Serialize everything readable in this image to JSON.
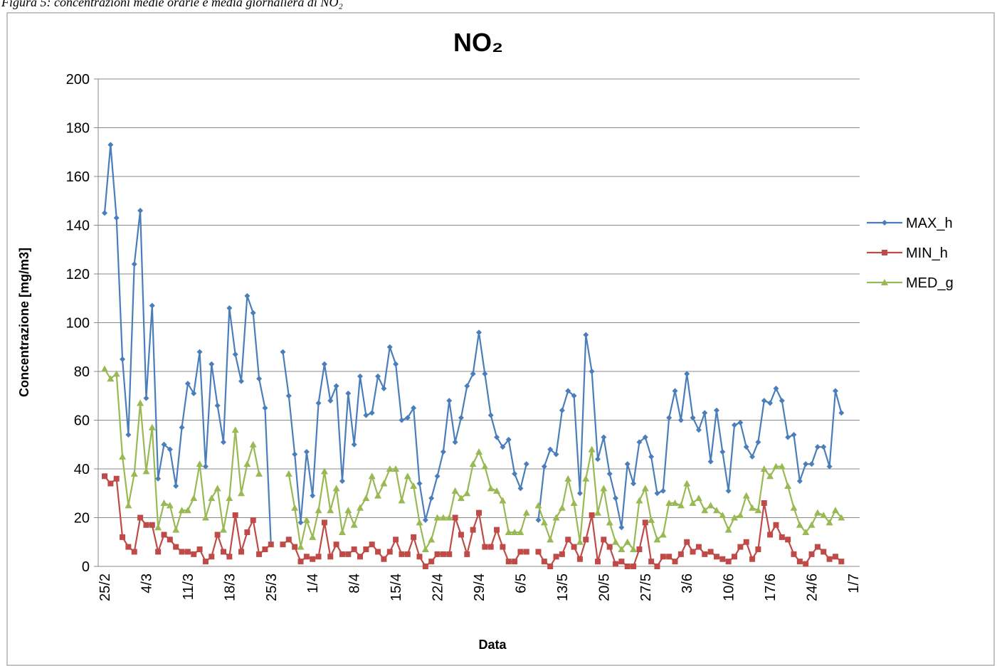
{
  "chart_data": {
    "type": "line",
    "caption": "Figura 5: concentrazioni medie orarie e media giornaliera di NO₂",
    "title": "NO₂",
    "x_label": "Data",
    "y_label": "Concentrazione [mg/m3]",
    "categories": [
      "25/2",
      null,
      null,
      null,
      null,
      null,
      null,
      "4/3",
      null,
      null,
      null,
      null,
      null,
      null,
      "11/3",
      null,
      null,
      null,
      null,
      null,
      null,
      "18/3",
      null,
      null,
      null,
      null,
      null,
      null,
      "25/3",
      null,
      null,
      null,
      null,
      null,
      null,
      "1/4",
      null,
      null,
      null,
      null,
      null,
      null,
      "8/4",
      null,
      null,
      null,
      null,
      null,
      null,
      "15/4",
      null,
      null,
      null,
      null,
      null,
      null,
      "22/4",
      null,
      null,
      null,
      null,
      null,
      null,
      "29/4",
      null,
      null,
      null,
      null,
      null,
      null,
      "6/5",
      null,
      null,
      null,
      null,
      null,
      null,
      "13/5",
      null,
      null,
      null,
      null,
      null,
      null,
      "20/5",
      null,
      null,
      null,
      null,
      null,
      null,
      "27/5",
      null,
      null,
      null,
      null,
      null,
      null,
      "3/6",
      null,
      null,
      null,
      null,
      null,
      null,
      "10/6",
      null,
      null,
      null,
      null,
      null,
      null,
      "17/6",
      null,
      null,
      null,
      null,
      null,
      null,
      "24/6",
      null,
      null,
      null,
      null,
      null,
      null,
      "1/7"
    ],
    "series": [
      {
        "name": "MAX_h",
        "color": "#4a7ebb",
        "marker": "diamond",
        "values": [
          145,
          173,
          143,
          85,
          54,
          124,
          146,
          69,
          107,
          36,
          50,
          48,
          33,
          57,
          75,
          71,
          88,
          41,
          83,
          66,
          51,
          106,
          87,
          76,
          111,
          104,
          77,
          65,
          9,
          null,
          88,
          70,
          46,
          18,
          47,
          29,
          67,
          83,
          68,
          74,
          35,
          71,
          50,
          78,
          62,
          63,
          78,
          73,
          90,
          83,
          60,
          61,
          65,
          34,
          19,
          28,
          37,
          47,
          68,
          51,
          61,
          74,
          79,
          96,
          79,
          62,
          53,
          49,
          52,
          38,
          32,
          42,
          null,
          19,
          41,
          48,
          46,
          64,
          72,
          70,
          30,
          95,
          80,
          44,
          53,
          38,
          28,
          16,
          42,
          34,
          51,
          53,
          45,
          30,
          31,
          61,
          72,
          60,
          79,
          61,
          56,
          63,
          43,
          64,
          47,
          31,
          58,
          59,
          49,
          45,
          51,
          68,
          67,
          73,
          68,
          53,
          54,
          35,
          42,
          42,
          49,
          49,
          41,
          72,
          63,
          null,
          null
        ]
      },
      {
        "name": "MIN_h",
        "color": "#be4b48",
        "marker": "square",
        "values": [
          37,
          34,
          36,
          12,
          8,
          6,
          20,
          17,
          17,
          6,
          13,
          11,
          8,
          6,
          6,
          5,
          7,
          2,
          4,
          13,
          6,
          4,
          21,
          6,
          14,
          19,
          5,
          7,
          9,
          null,
          9,
          11,
          8,
          2,
          4,
          3,
          4,
          18,
          4,
          9,
          5,
          5,
          7,
          4,
          7,
          9,
          6,
          3,
          6,
          11,
          5,
          5,
          12,
          4,
          0,
          2,
          5,
          5,
          5,
          20,
          13,
          5,
          15,
          22,
          8,
          8,
          15,
          8,
          2,
          2,
          6,
          6,
          null,
          6,
          2,
          0,
          4,
          5,
          11,
          8,
          3,
          11,
          21,
          2,
          11,
          8,
          1,
          2,
          0,
          0,
          7,
          18,
          2,
          0,
          4,
          4,
          2,
          5,
          10,
          6,
          8,
          5,
          6,
          4,
          3,
          2,
          4,
          8,
          10,
          3,
          7,
          26,
          13,
          17,
          12,
          11,
          5,
          2,
          1,
          5,
          8,
          6,
          3,
          4,
          2,
          null,
          null
        ]
      },
      {
        "name": "MED_g",
        "color": "#98b954",
        "marker": "triangle",
        "values": [
          81,
          77,
          79,
          45,
          25,
          38,
          67,
          39,
          57,
          16,
          26,
          25,
          15,
          23,
          23,
          28,
          42,
          20,
          28,
          32,
          15,
          28,
          56,
          30,
          42,
          50,
          38,
          null,
          null,
          null,
          null,
          38,
          24,
          8,
          19,
          12,
          23,
          39,
          23,
          32,
          14,
          23,
          17,
          24,
          28,
          37,
          29,
          34,
          40,
          40,
          27,
          37,
          33,
          18,
          7,
          11,
          20,
          20,
          20,
          31,
          28,
          30,
          42,
          47,
          41,
          32,
          31,
          27,
          14,
          14,
          14,
          22,
          null,
          25,
          18,
          11,
          20,
          24,
          36,
          26,
          10,
          36,
          48,
          22,
          32,
          18,
          10,
          7,
          10,
          7,
          27,
          32,
          19,
          11,
          13,
          26,
          26,
          25,
          34,
          26,
          28,
          23,
          25,
          23,
          21,
          15,
          20,
          21,
          29,
          24,
          23,
          40,
          37,
          41,
          41,
          33,
          24,
          17,
          14,
          17,
          22,
          21,
          18,
          23,
          20,
          null,
          null
        ]
      }
    ],
    "ylim": [
      0,
      200
    ],
    "yticks": [
      0,
      20,
      40,
      60,
      80,
      100,
      120,
      140,
      160,
      180,
      200
    ],
    "grid": true,
    "legend": "right"
  }
}
